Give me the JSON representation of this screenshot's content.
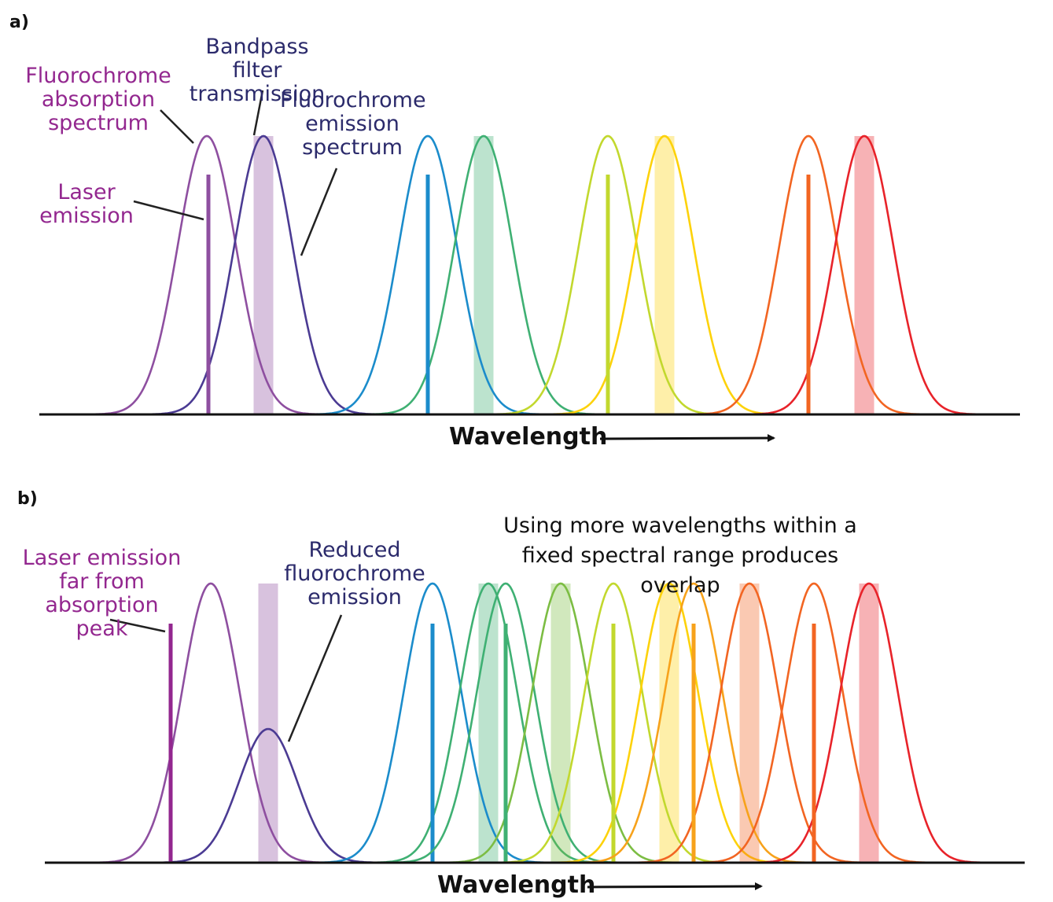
{
  "panel_a": {
    "label": "a)",
    "labels": {
      "absorption": "Fluorochrome absorption spectrum",
      "bandpass": "Bandpass filter transmission",
      "emission": "Fluorochrome emission spectrum",
      "laser": "Laser emission"
    },
    "axis_label": "Wavelength"
  },
  "panel_b": {
    "label": "b)",
    "labels": {
      "laser_far": "Laser emission far from absorption peak",
      "reduced": "Reduced fluorochrome emission",
      "note": "Using more wavelengths within a fixed spectral range produces overlap"
    },
    "axis_label": "Wavelength"
  },
  "colors": {
    "label_magenta": "#93278f",
    "label_navy": "#2b2a6b",
    "purple": "#8e4fa0",
    "indigo": "#4b3b93",
    "blue": "#1b8ccb",
    "green": "#3fb073",
    "yellow_green": "#7cbd43",
    "lime": "#c2d82e",
    "yellow": "#fdd20a",
    "orange": "#f7a21b",
    "dark_orange": "#f26522",
    "red": "#e8232a"
  }
}
